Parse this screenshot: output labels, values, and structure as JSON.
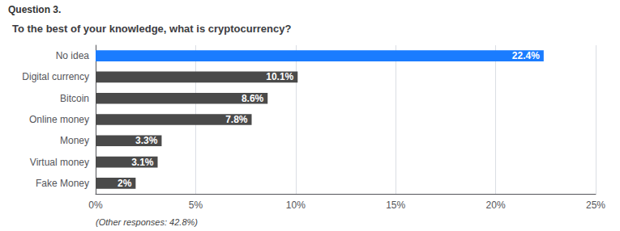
{
  "chart_data": {
    "type": "bar",
    "orientation": "horizontal",
    "title": "To the best of your knowledge, what is cryptocurrency?",
    "annotations": [
      "Question 3.",
      "(Other responses: 42.8%)"
    ],
    "categories": [
      "Fake Money",
      "Virtual money",
      "Money",
      "Online money",
      "Bitcoin",
      "Digital currency",
      "No idea"
    ],
    "values": [
      2.0,
      3.1,
      3.3,
      7.8,
      8.6,
      10.1,
      22.4
    ],
    "value_labels": [
      "2%",
      "3.1%",
      "3.3%",
      "7.8%",
      "8.6%",
      "10.1%",
      "22.4%"
    ],
    "data_labels": true,
    "colors": [
      "#4a4a4a",
      "#4a4a4a",
      "#4a4a4a",
      "#4a4a4a",
      "#4a4a4a",
      "#4a4a4a",
      "#1a7cff"
    ],
    "xlim": [
      0,
      25
    ],
    "xticks": [
      {
        "value": 0,
        "label": "0%"
      },
      {
        "value": 5,
        "label": "5%"
      },
      {
        "value": 10,
        "label": "10%"
      },
      {
        "value": 15,
        "label": "15%"
      },
      {
        "value": 20,
        "label": "20%"
      },
      {
        "value": 25,
        "label": "25%"
      }
    ],
    "grid": true
  }
}
